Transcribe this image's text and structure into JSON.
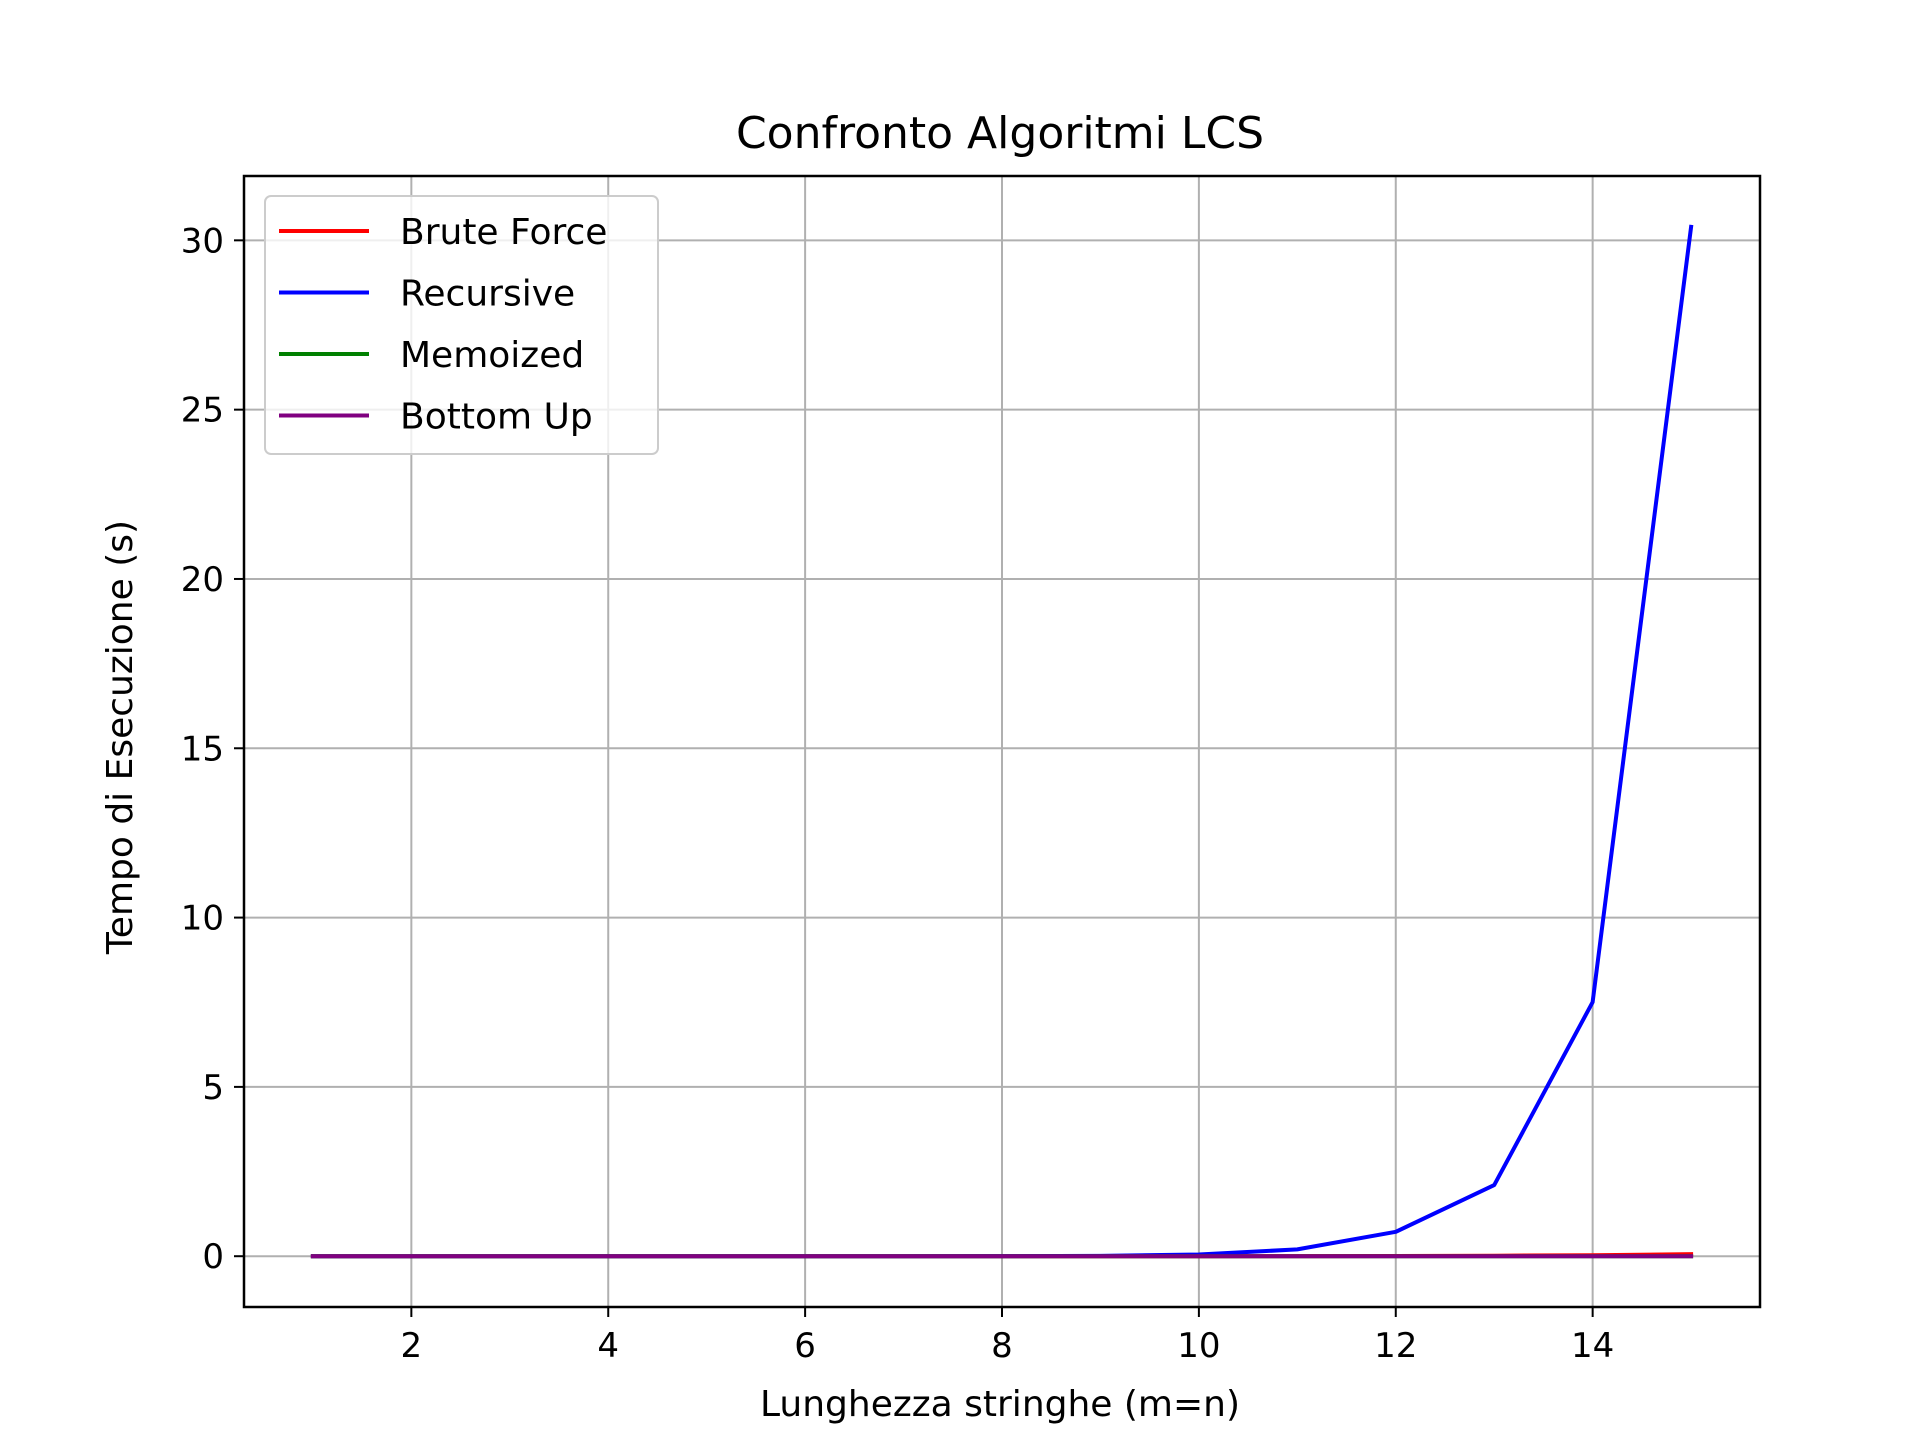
{
  "chart_data": {
    "type": "line",
    "title": "Confronto Algoritmi LCS",
    "xlabel": "Lunghezza stringhe (m=n)",
    "ylabel": "Tempo di Esecuzione (s)",
    "xlim": [
      0.3,
      15.7
    ],
    "ylim": [
      -1.5,
      31.9
    ],
    "xticks": [
      2,
      4,
      6,
      8,
      10,
      12,
      14
    ],
    "yticks": [
      0,
      5,
      10,
      15,
      20,
      25,
      30
    ],
    "grid": true,
    "legend_position": "upper left",
    "x": [
      1,
      2,
      3,
      4,
      5,
      6,
      7,
      8,
      9,
      10,
      11,
      12,
      13,
      14,
      15
    ],
    "series": [
      {
        "name": "Brute Force",
        "color": "#ff0000",
        "values": [
          0,
          0,
          0,
          0,
          0,
          0,
          0,
          0,
          0,
          0.001,
          0.003,
          0.007,
          0.015,
          0.03,
          0.06
        ]
      },
      {
        "name": "Recursive",
        "color": "#0000ff",
        "values": [
          0,
          0,
          0,
          0,
          0,
          0,
          0.001,
          0.003,
          0.01,
          0.05,
          0.2,
          0.72,
          2.1,
          7.5,
          30.4
        ]
      },
      {
        "name": "Memoized",
        "color": "#008000",
        "values": [
          0,
          0,
          0,
          0,
          0,
          0,
          0,
          0,
          0,
          0,
          0,
          0,
          0,
          0,
          0
        ]
      },
      {
        "name": "Bottom Up",
        "color": "#800080",
        "values": [
          0,
          0,
          0,
          0,
          0,
          0,
          0,
          0,
          0,
          0,
          0,
          0,
          0,
          0,
          0
        ]
      }
    ]
  }
}
